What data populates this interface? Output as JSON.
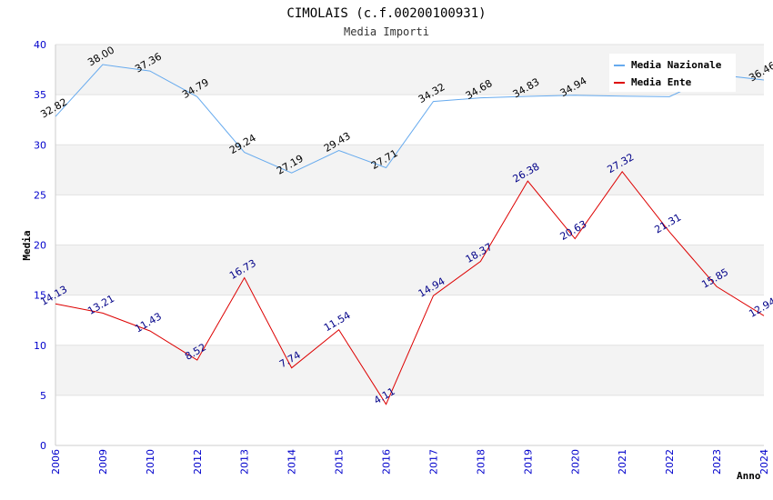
{
  "chart_data": {
    "type": "line",
    "title": "CIMOLAIS (c.f.00200100931)",
    "subtitle": "Media Importi",
    "ylabel": "Media",
    "xlabel": "Anno",
    "ylim": [
      0,
      40
    ],
    "yticks": [
      0,
      5,
      10,
      15,
      20,
      25,
      30,
      35,
      40
    ],
    "categories": [
      "2006",
      "2009",
      "2010",
      "2012",
      "2013",
      "2014",
      "2015",
      "2016",
      "2017",
      "2018",
      "2019",
      "2020",
      "2021",
      "2022",
      "2023",
      "2024"
    ],
    "legend_position": "top-right",
    "series": [
      {
        "name": "Media Nazionale",
        "color": "#66aaee",
        "label_color": "#000000",
        "values": [
          32.82,
          38.0,
          37.36,
          34.79,
          29.24,
          27.19,
          29.43,
          27.71,
          34.32,
          34.68,
          34.83,
          34.94,
          34.85,
          34.8,
          37.0,
          36.46
        ],
        "labels": [
          "32.82",
          "38.00",
          "37.36",
          "34.79",
          "29.24",
          "27.19",
          "29.43",
          "27.71",
          "34.32",
          "34.68",
          "34.83",
          "34.94",
          "",
          "",
          "",
          "36.46"
        ]
      },
      {
        "name": "Media Ente",
        "color": "#dd0000",
        "label_color": "#000088",
        "values": [
          14.13,
          13.21,
          11.43,
          8.52,
          16.73,
          7.74,
          11.54,
          4.11,
          14.94,
          18.37,
          26.38,
          20.63,
          27.32,
          21.31,
          15.85,
          12.94
        ],
        "labels": [
          "14.13",
          "13.21",
          "11.43",
          "8.52",
          "16.73",
          "7.74",
          "11.54",
          "4.11",
          "14.94",
          "18.37",
          "26.38",
          "20.63",
          "27.32",
          "21.31",
          "15.85",
          "12.94"
        ]
      }
    ]
  }
}
